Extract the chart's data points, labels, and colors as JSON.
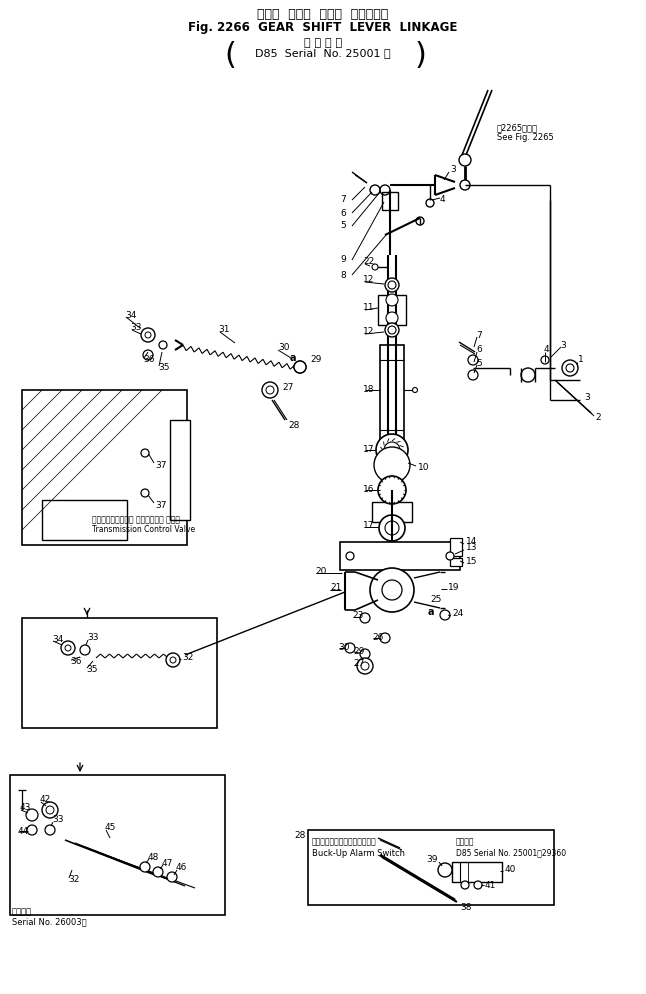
{
  "title_line1": "ギヤー  シフト  レバー  リンケージ",
  "title_line2": "Fig. 2266  GEAR  SHIFT  LEVER  LINKAGE",
  "subtitle_line1": "適 用 号 機",
  "subtitle_line2": "D85  Serial  No. 25001 ～",
  "note_tr1": "第2265図参照",
  "note_tr2": "See Fig. 2265",
  "note_tcv1": "トランスミッション コントロール バルブ",
  "note_tcv2": "Transmission Control Valve",
  "note_alarm1": "バックアップアラームスイッチ",
  "note_alarm2": "Buck-Up Alarm Switch",
  "note_serial_r1": "適用号機",
  "note_serial_r2": "D85 Serial No. 25001～29360",
  "note_serial_l1": "適用号機",
  "note_serial_l2": "Serial No. 26003－",
  "bg": "#ffffff"
}
